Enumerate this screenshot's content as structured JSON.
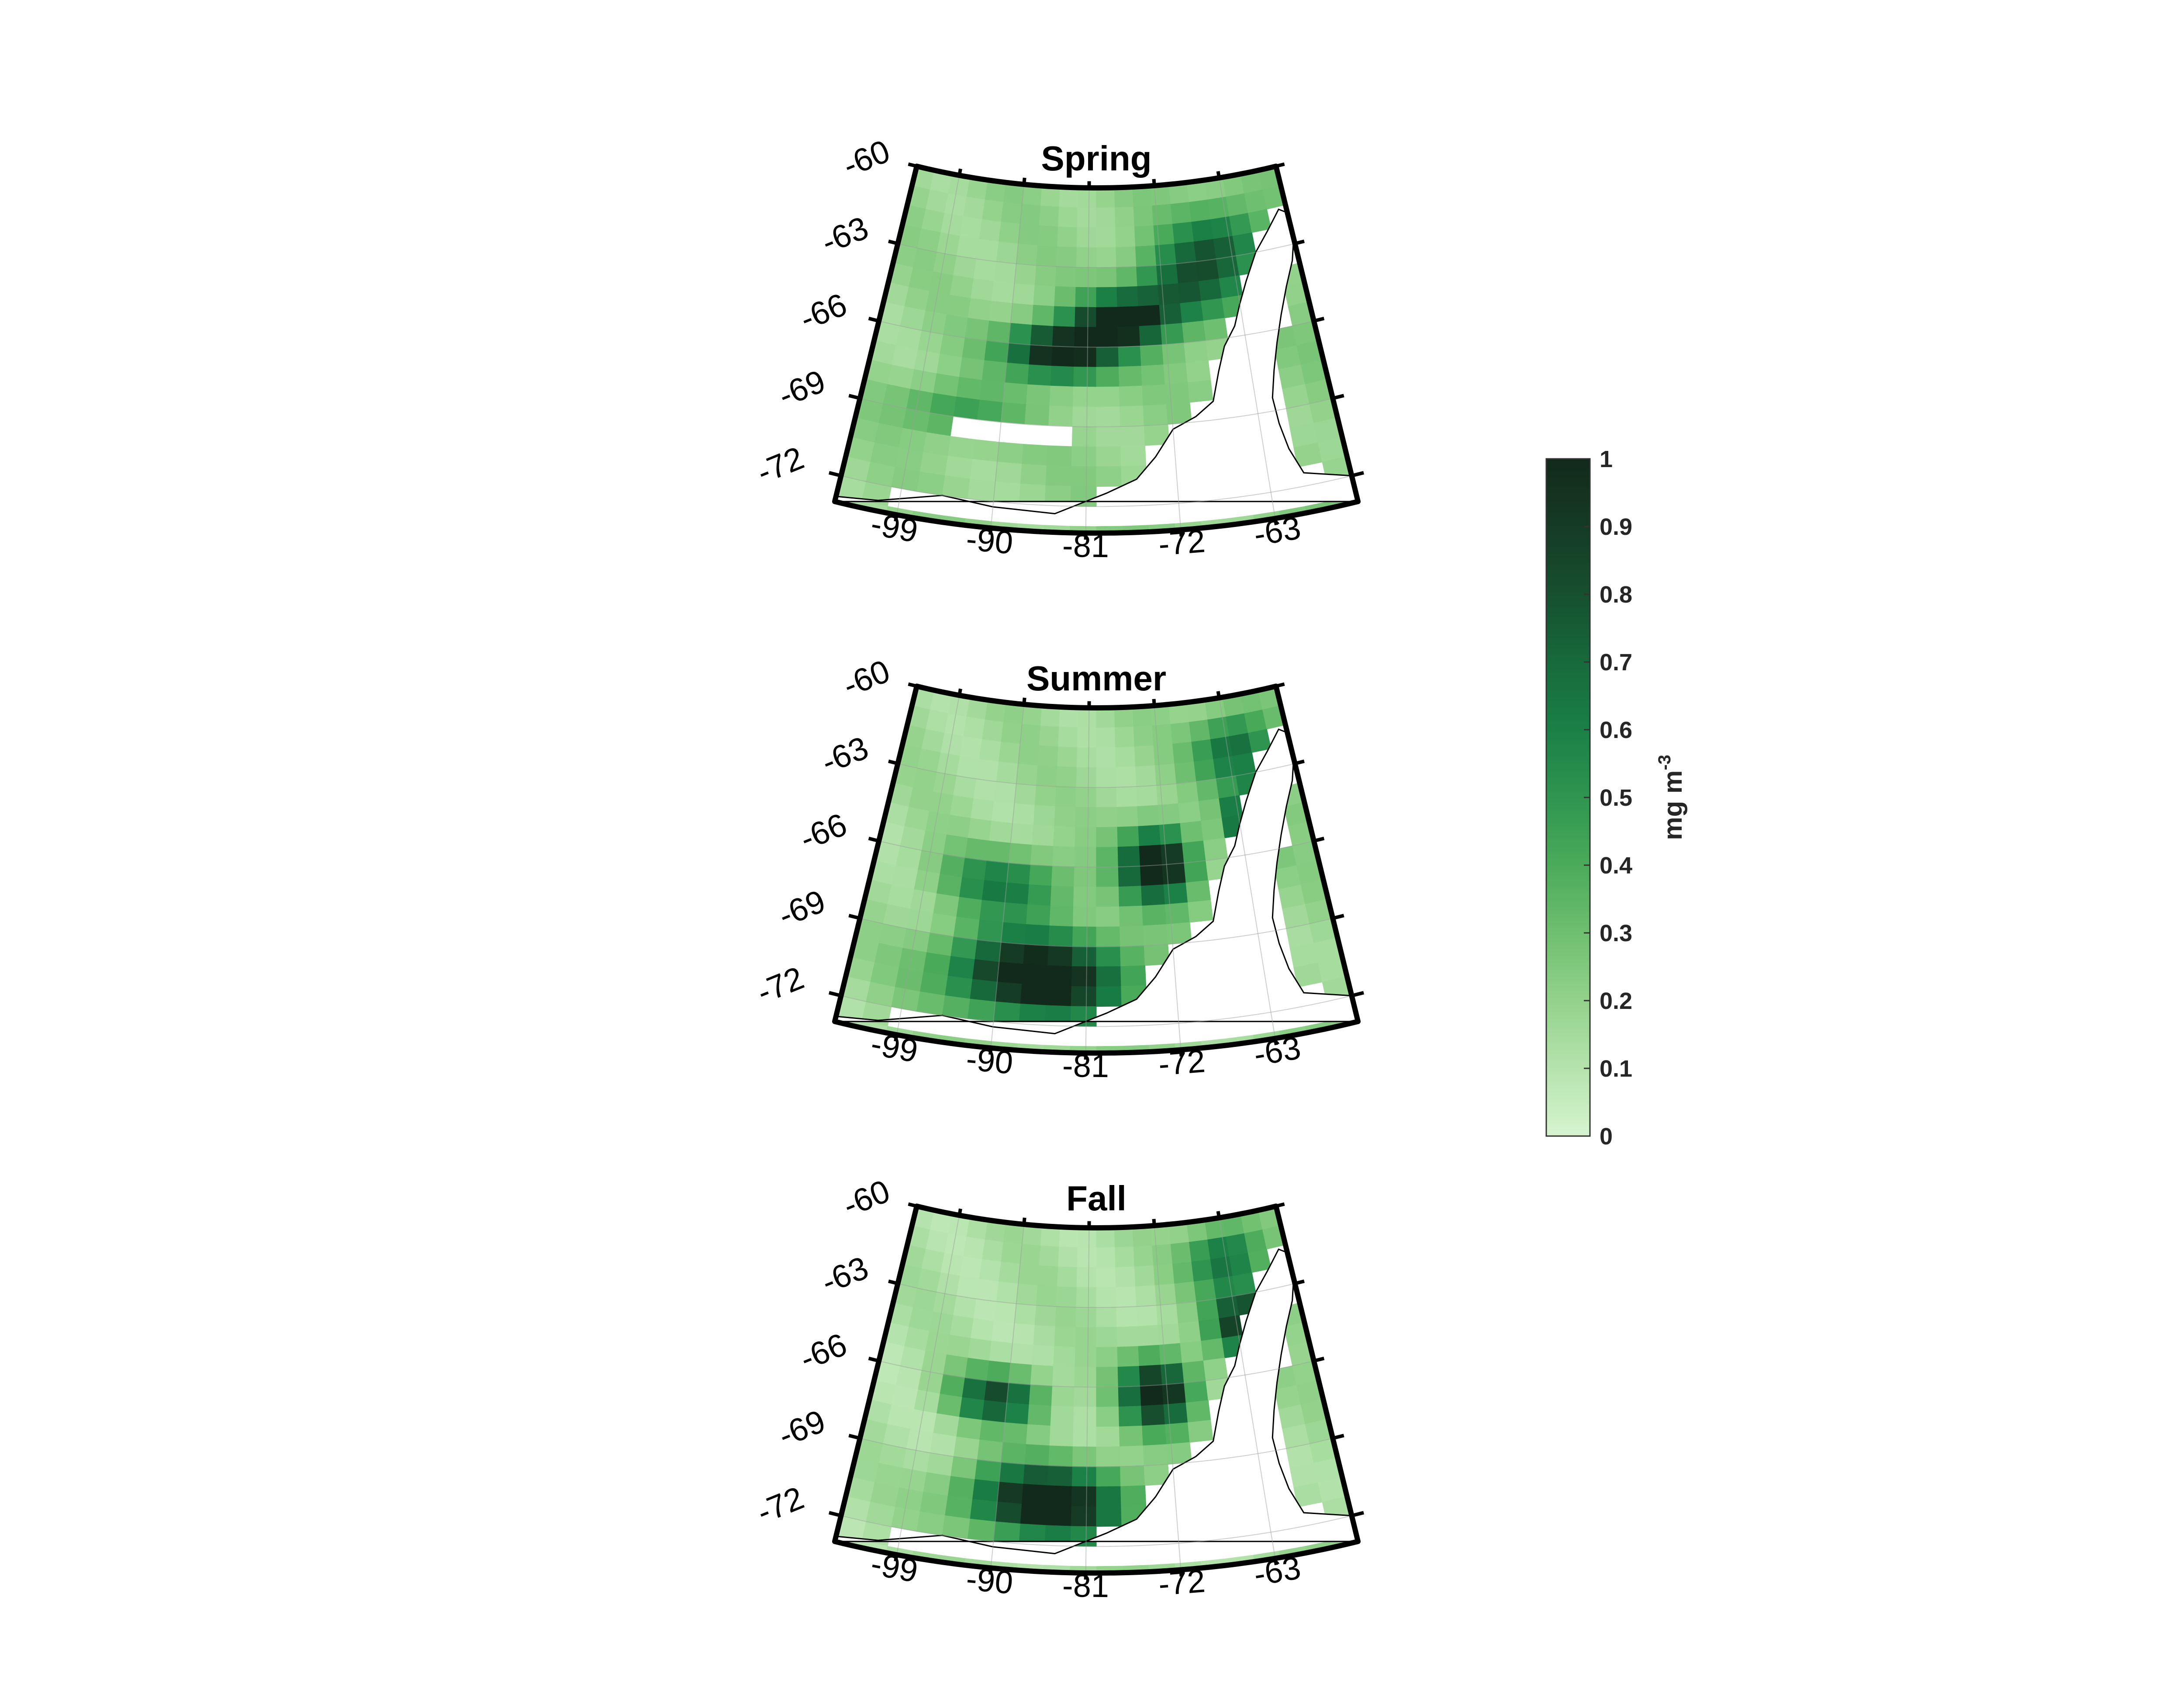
{
  "panels": [
    {
      "id": "spring",
      "title": "Spring",
      "lat_labels": [
        "-60",
        "-63",
        "-66",
        "-69",
        "-72"
      ],
      "lon_labels": [
        "-99",
        "-90",
        "-81",
        "-72",
        "-63"
      ],
      "field": {
        "background": 0.18,
        "blobs": [
          {
            "lon": -84,
            "lat": -66.2,
            "value": 0.95,
            "dlon": 6,
            "dlat": 1.0
          },
          {
            "lon": -77,
            "lat": -65.0,
            "value": 0.9,
            "dlon": 5,
            "dlat": 0.9
          },
          {
            "lon": -70,
            "lat": -64.0,
            "value": 0.5,
            "dlon": 6,
            "dlat": 1.5
          },
          {
            "lon": -64,
            "lat": -62.5,
            "value": 0.45,
            "dlon": 6,
            "dlat": 1.5
          },
          {
            "lon": -95,
            "lat": -68.8,
            "value": 0.3,
            "dlon": 6,
            "dlat": 1.0
          }
        ],
        "missing": [
          {
            "lon": -94,
            "lat": -69.5
          },
          {
            "lon": -90,
            "lat": -69.4
          },
          {
            "lon": -85,
            "lat": -69.6
          }
        ]
      }
    },
    {
      "id": "summer",
      "title": "Summer",
      "lat_labels": [
        "-60",
        "-63",
        "-66",
        "-69",
        "-72"
      ],
      "lon_labels": [
        "-99",
        "-90",
        "-81",
        "-72",
        "-63"
      ],
      "field": {
        "background": 0.15,
        "blobs": [
          {
            "lon": -86,
            "lat": -70.2,
            "value": 1.0,
            "dlon": 9,
            "dlat": 1.6
          },
          {
            "lon": -73,
            "lat": -66.0,
            "value": 1.0,
            "dlon": 4,
            "dlat": 1.3
          },
          {
            "lon": -61,
            "lat": -64.6,
            "value": 1.0,
            "dlon": 3,
            "dlat": 1.0
          },
          {
            "lon": -62,
            "lat": -62.0,
            "value": 0.55,
            "dlon": 5,
            "dlat": 1.3
          },
          {
            "lon": -90,
            "lat": -66.8,
            "value": 0.45,
            "dlon": 7,
            "dlat": 1.2
          }
        ],
        "missing": []
      }
    },
    {
      "id": "fall",
      "title": "Fall",
      "lat_labels": [
        "-60",
        "-63",
        "-66",
        "-69",
        "-72"
      ],
      "lon_labels": [
        "-99",
        "-90",
        "-81",
        "-72",
        "-63"
      ],
      "field": {
        "background": 0.12,
        "blobs": [
          {
            "lon": -85,
            "lat": -70.4,
            "value": 1.0,
            "dlon": 8,
            "dlat": 1.4
          },
          {
            "lon": -73,
            "lat": -66.3,
            "value": 0.95,
            "dlon": 4,
            "dlat": 1.3
          },
          {
            "lon": -62,
            "lat": -64.0,
            "value": 0.8,
            "dlon": 4,
            "dlat": 1.2
          },
          {
            "lon": -91,
            "lat": -66.6,
            "value": 0.7,
            "dlon": 5,
            "dlat": 1.0
          },
          {
            "lon": -63,
            "lat": -61.5,
            "value": 0.55,
            "dlon": 5,
            "dlat": 1.2
          }
        ],
        "missing": []
      }
    }
  ],
  "colorbar": {
    "ticks": [
      "0",
      "0.1",
      "0.2",
      "0.3",
      "0.4",
      "0.5",
      "0.6",
      "0.7",
      "0.8",
      "0.9",
      "1"
    ],
    "min": 0,
    "max": 1,
    "label_main": "mg m",
    "label_sup": "-3",
    "colors": [
      "#d6f5cf",
      "#b5e3ad",
      "#93d28b",
      "#6ebf6f",
      "#4aab5a",
      "#2f9550",
      "#1a8046",
      "#176a3c",
      "#16502f",
      "#153b24",
      "#122a1b"
    ]
  }
}
